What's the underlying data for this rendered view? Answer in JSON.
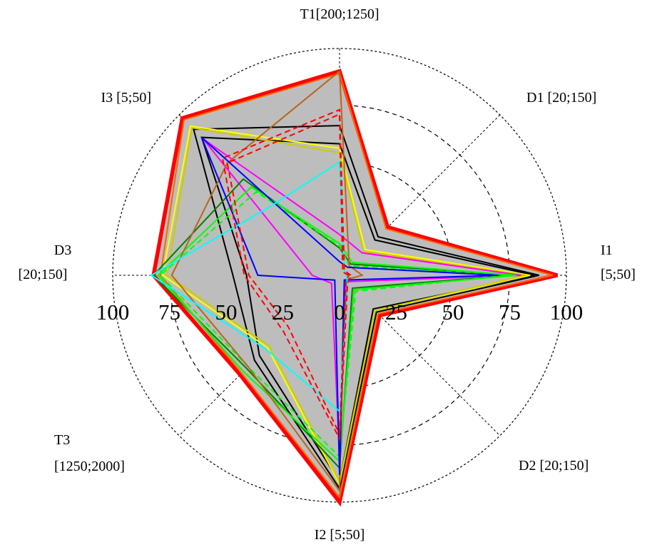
{
  "chart_data": {
    "type": "radar",
    "rlim": [
      0,
      100
    ],
    "radial_ticks": [
      "0",
      "25",
      "50",
      "75",
      "100"
    ],
    "axes": [
      {
        "name": "I1",
        "range": "[5;50]"
      },
      {
        "name": "D1",
        "range": "[20;150]"
      },
      {
        "name": "T1",
        "range": "[200;1250]"
      },
      {
        "name": "I3",
        "range": "[5;50]"
      },
      {
        "name": "D3",
        "range": "[20;150]"
      },
      {
        "name": "T3",
        "range": "[1250;2000]"
      },
      {
        "name": "I2",
        "range": "[5;50]"
      },
      {
        "name": "D2",
        "range": "[20;150]"
      }
    ],
    "grid": "dashed circles and spokes",
    "envelope": {
      "values": [
        96,
        30,
        90,
        98,
        82,
        62,
        100,
        25
      ],
      "fill": "#bdbdbd",
      "color": "#ff0000"
    },
    "series": [
      {
        "color": "#ff6600",
        "style": "solid",
        "values": [
          94,
          29,
          89,
          97,
          79,
          61,
          98,
          24
        ]
      },
      {
        "color": "#000000",
        "style": "solid",
        "values": [
          88,
          24,
          66,
          91,
          47,
          53,
          94,
          23
        ]
      },
      {
        "color": "#000000",
        "style": "solid",
        "values": [
          86,
          22,
          58,
          86,
          41,
          50,
          91,
          21
        ]
      },
      {
        "color": "#ffff00",
        "style": "solid",
        "values": [
          84,
          16,
          56,
          93,
          78,
          45,
          92,
          22
        ]
      },
      {
        "color": "#cccc00",
        "style": "solid",
        "values": [
          82,
          15,
          54,
          92,
          76,
          44,
          91,
          22
        ]
      },
      {
        "color": "#ff00ff",
        "style": "solid",
        "values": [
          80,
          14,
          18,
          85,
          12,
          5,
          80,
          4
        ]
      },
      {
        "color": "#008000",
        "style": "solid",
        "values": [
          76,
          7,
          12,
          60,
          82,
          58,
          85,
          8
        ]
      },
      {
        "color": "#00ff00",
        "style": "solid",
        "values": [
          78,
          8,
          14,
          55,
          80,
          60,
          82,
          9
        ]
      },
      {
        "color": "#00ff00",
        "style": "dashed",
        "values": [
          74,
          6,
          13,
          52,
          79,
          57,
          80,
          10
        ]
      },
      {
        "color": "#b8651b",
        "style": "solid",
        "values": [
          10,
          6,
          90,
          70,
          74,
          57,
          95,
          3
        ]
      },
      {
        "color": "#0000ff",
        "style": "solid",
        "values": [
          70,
          5,
          6,
          86,
          36,
          3,
          88,
          3
        ]
      },
      {
        "color": "#00ffff",
        "style": "solid",
        "values": [
          3,
          3,
          50,
          43,
          83,
          46,
          60,
          5
        ]
      },
      {
        "color": "#ff0000",
        "style": "dashed",
        "values": [
          5,
          3,
          73,
          73,
          42,
          35,
          72,
          5
        ]
      },
      {
        "color": "#ff0000",
        "style": "dashed",
        "values": [
          4,
          2,
          71,
          70,
          40,
          32,
          70,
          4
        ]
      }
    ]
  }
}
